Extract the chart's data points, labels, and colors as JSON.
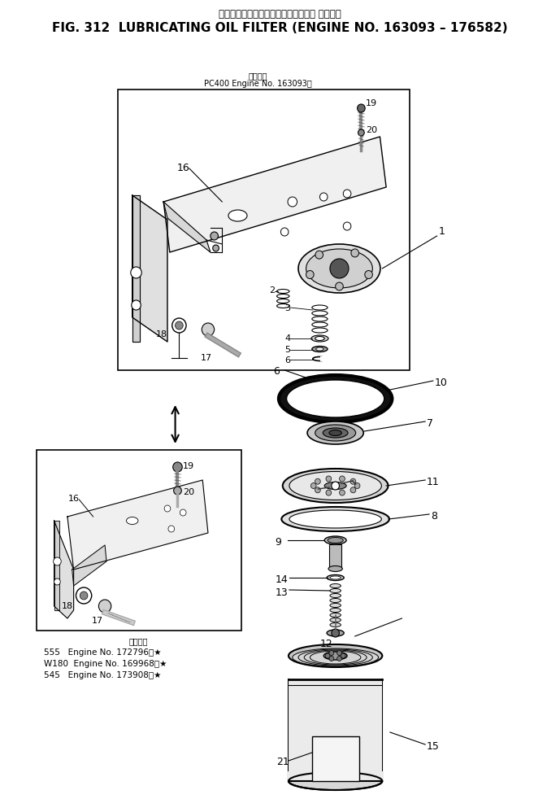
{
  "title_jp": "ルーブリケーティングオイルフィルタ 適用号機",
  "title_en": "FIG. 312  LUBRICATING OIL FILTER (ENGINE NO. 163093 – 176582)",
  "subtitle_jp": "適用号機",
  "subtitle_machine": "PC400 Engine No. 163093〜",
  "inset_subtitle_jp": "適用号機",
  "inset_lines": [
    "555   Engine No. 172796〜★",
    "W180  Engine No. 169968〜★",
    "545   Engine No. 173908〜★"
  ],
  "bg_color": "#ffffff",
  "line_color": "#000000",
  "fig_width": 6.89,
  "fig_height": 9.98
}
